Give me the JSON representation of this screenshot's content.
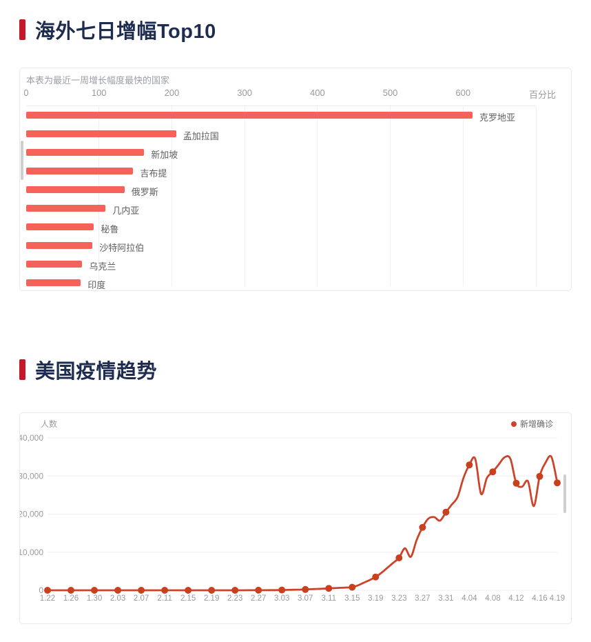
{
  "colors": {
    "accent_red": "#c5182b",
    "title_text": "#1e2c4f",
    "bar_fill": "#f4625a",
    "line": "#cd4228",
    "dot": "#c9401f",
    "grid": "#efefef",
    "axis_text": "#9a9a9a",
    "category_text": "#5f5f5f",
    "legend_text": "#666666"
  },
  "section1": {
    "title": "海外七日增幅Top10"
  },
  "section2": {
    "title": "美国疫情趋势"
  },
  "chart_data": [
    {
      "type": "bar",
      "orientation": "horizontal",
      "title": "海外七日增幅Top10",
      "subtitle": "本表为最近一周增长幅度最快的国家",
      "unit_label": "百分比",
      "categories": [
        "克罗地亚",
        "孟加拉国",
        "新加坡",
        "吉布提",
        "俄罗斯",
        "几内亚",
        "秘鲁",
        "沙特阿拉伯",
        "乌克兰",
        "印度"
      ],
      "values": [
        613,
        206,
        162,
        147,
        135,
        109,
        93,
        91,
        77,
        75
      ],
      "x_ticks": [
        0,
        100,
        200,
        300,
        400,
        500,
        600
      ],
      "xlim": [
        0,
        700
      ],
      "grid": true
    },
    {
      "type": "line",
      "title": "美国疫情趋势",
      "ylabel": "人数",
      "legend": [
        "新增确诊"
      ],
      "legend_position": "top-right",
      "ylim": [
        0,
        40000
      ],
      "y_ticks": [
        0,
        10000,
        20000,
        30000,
        40000
      ],
      "x_tick_labels": [
        "1.22",
        "1.26",
        "1.30",
        "2.03",
        "2.07",
        "2.11",
        "2.15",
        "2.19",
        "2.23",
        "2.27",
        "3.03",
        "3.07",
        "3.11",
        "3.15",
        "3.19",
        "3.23",
        "3.27",
        "3.31",
        "4.04",
        "4.08",
        "4.12",
        "4.16",
        "4.19"
      ],
      "x_tick_indices": [
        0,
        4,
        8,
        12,
        16,
        20,
        24,
        28,
        32,
        36,
        40,
        44,
        48,
        52,
        56,
        60,
        64,
        68,
        72,
        76,
        80,
        84,
        87
      ],
      "x": [
        "1.22",
        "1.23",
        "1.24",
        "1.25",
        "1.26",
        "1.27",
        "1.28",
        "1.29",
        "1.30",
        "1.31",
        "2.01",
        "2.02",
        "2.03",
        "2.04",
        "2.05",
        "2.06",
        "2.07",
        "2.08",
        "2.09",
        "2.10",
        "2.11",
        "2.12",
        "2.13",
        "2.14",
        "2.15",
        "2.16",
        "2.17",
        "2.18",
        "2.19",
        "2.20",
        "2.21",
        "2.22",
        "2.23",
        "2.24",
        "2.25",
        "2.26",
        "2.27",
        "2.28",
        "3.01",
        "3.02",
        "3.03",
        "3.04",
        "3.05",
        "3.06",
        "3.07",
        "3.08",
        "3.09",
        "3.10",
        "3.11",
        "3.12",
        "3.13",
        "3.14",
        "3.15",
        "3.16",
        "3.17",
        "3.18",
        "3.19",
        "3.20",
        "3.21",
        "3.22",
        "3.23",
        "3.24",
        "3.25",
        "3.26",
        "3.27",
        "3.28",
        "3.29",
        "3.30",
        "3.31",
        "4.01",
        "4.02",
        "4.03",
        "4.04",
        "4.05",
        "4.06",
        "4.07",
        "4.08",
        "4.09",
        "4.10",
        "4.11",
        "4.12",
        "4.13",
        "4.14",
        "4.15",
        "4.16",
        "4.17",
        "4.18",
        "4.19"
      ],
      "series": [
        {
          "name": "新增确诊",
          "values": [
            1,
            0,
            1,
            0,
            3,
            0,
            2,
            0,
            2,
            3,
            1,
            0,
            3,
            0,
            1,
            0,
            2,
            1,
            2,
            0,
            1,
            2,
            0,
            1,
            1,
            0,
            2,
            3,
            1,
            2,
            5,
            3,
            8,
            6,
            10,
            12,
            15,
            20,
            30,
            45,
            70,
            100,
            140,
            170,
            225,
            290,
            360,
            430,
            500,
            580,
            650,
            720,
            800,
            1300,
            2000,
            2700,
            3500,
            4600,
            5900,
            7200,
            8500,
            11000,
            8800,
            13200,
            16500,
            18800,
            19200,
            18300,
            20500,
            22500,
            24500,
            29500,
            32900,
            34500,
            25300,
            29500,
            31100,
            33000,
            34900,
            34500,
            28100,
            27200,
            28600,
            22100,
            29900,
            33500,
            35000,
            28200
          ]
        }
      ]
    }
  ]
}
